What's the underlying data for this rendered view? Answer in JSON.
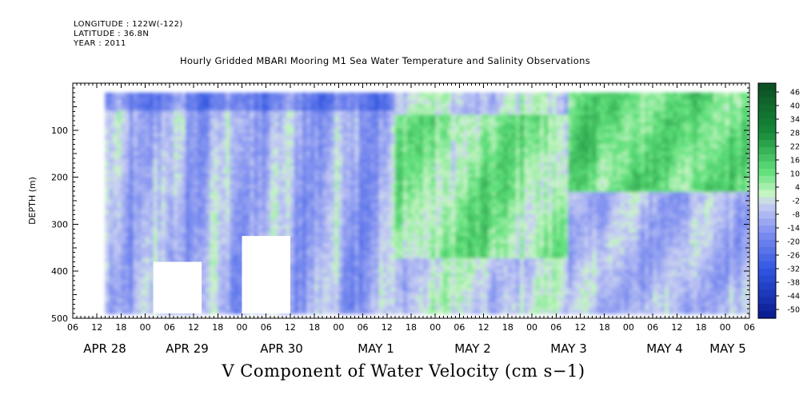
{
  "header": {
    "longitude": "LONGITUDE : 122W(-122)",
    "latitude": "LATITUDE : 36.8N",
    "year": "YEAR : 2011"
  },
  "chart_data": {
    "type": "heatmap",
    "title": "Hourly Gridded MBARI Mooring M1 Sea Water Temperature and Salinity Observations",
    "xlabel": "V Component of Water Velocity (cm s−1)",
    "ylabel": "DEPTH (m)",
    "y_axis": {
      "range": [
        500,
        0
      ],
      "inverted": true,
      "tick_labels": [
        "100",
        "200",
        "300",
        "400",
        "500"
      ],
      "tick_values": [
        100,
        200,
        300,
        400,
        500
      ]
    },
    "x_axis": {
      "range": [
        "2011-04-28T06:00",
        "2011-05-05T06:00"
      ],
      "hour_tick_labels": [
        "06",
        "12",
        "18",
        "00",
        "06",
        "12",
        "18",
        "00",
        "06",
        "12",
        "18",
        "00",
        "06",
        "12",
        "18",
        "00",
        "06",
        "12",
        "18",
        "00",
        "06",
        "12",
        "18",
        "00",
        "06",
        "12",
        "18",
        "00",
        "06"
      ],
      "day_labels": [
        "APR 28",
        "APR 29",
        "APR 30",
        "MAY  1",
        "MAY  2",
        "MAY  3",
        "MAY  4",
        "MAY  5"
      ]
    },
    "colorbar": {
      "labels": [
        "46",
        "40",
        "34",
        "28",
        "22",
        "16",
        "10",
        "4",
        "-2",
        "-8",
        "-14",
        "-20",
        "-26",
        "-32",
        "-38",
        "-44",
        "-50"
      ],
      "range": [
        -50,
        49
      ],
      "colors_high": [
        "#0a4d22",
        "#178a3a",
        "#5fe07a",
        "#c9f5c6"
      ],
      "colors_low": [
        "#c9cff3",
        "#7f8ff0",
        "#2e54e0",
        "#0a1a8c"
      ]
    },
    "data_extent": {
      "start": "2011-04-28T14:00",
      "end": "2011-05-05T06:00",
      "depth_top": 20,
      "depth_bottom": 490
    },
    "missing_regions": [
      {
        "start": "2011-04-29T02:00",
        "end": "2011-04-29T14:00",
        "depth_top": 380,
        "depth_bottom": 490
      },
      {
        "start": "2011-04-30T00:00",
        "end": "2011-04-30T12:00",
        "depth_top": 325,
        "depth_bottom": 490
      }
    ],
    "pattern": "Predominantly negative (blue) velocities Apr 28 - May 1 with weak positive bands; predominantly positive (green) velocities May 1 - May 5, strongest 0-250 m on May 3-5 and mid-depth on May 2-3"
  }
}
